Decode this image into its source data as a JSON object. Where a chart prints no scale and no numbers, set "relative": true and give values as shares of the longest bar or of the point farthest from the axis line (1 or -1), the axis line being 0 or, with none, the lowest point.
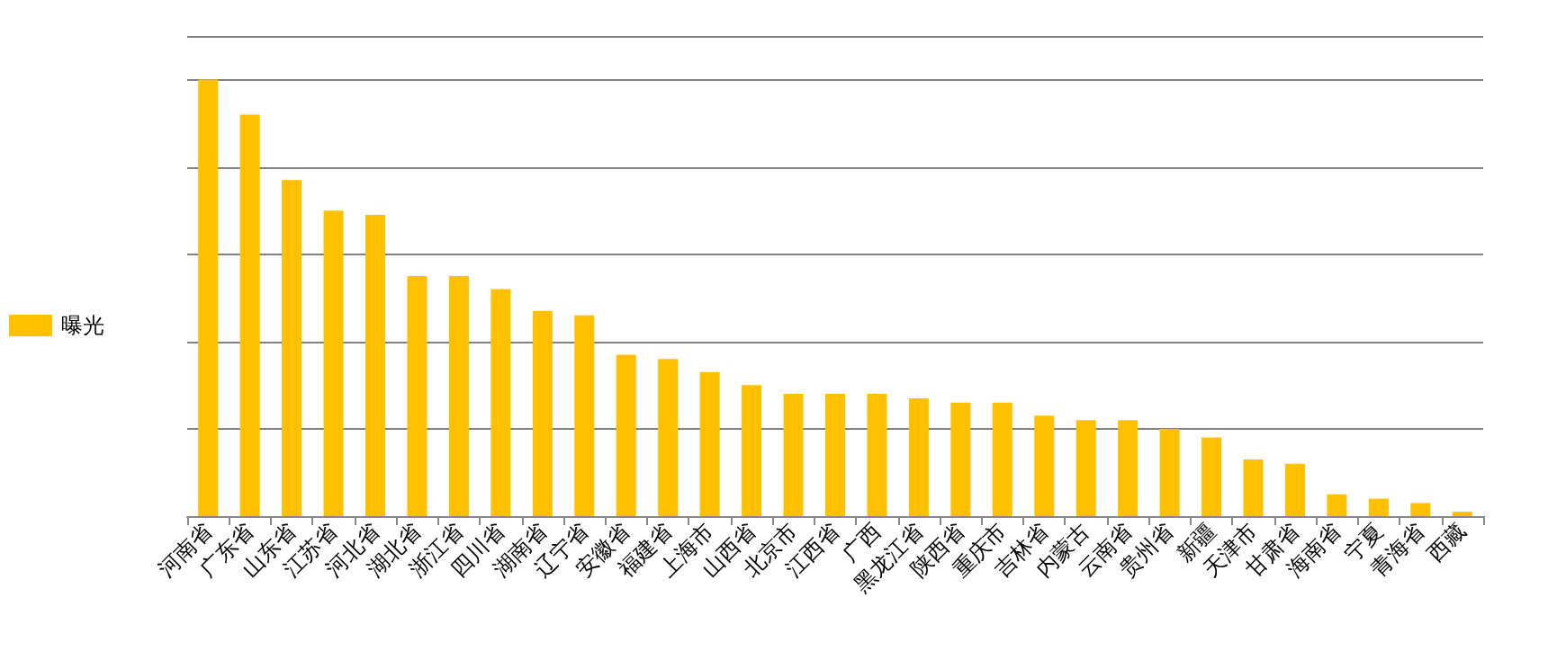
{
  "chart_data": {
    "type": "bar",
    "relative": true,
    "categories": [
      "河南省",
      "广东省",
      "山东省",
      "江苏省",
      "河北省",
      "湖北省",
      "浙江省",
      "四川省",
      "湖南省",
      "辽宁省",
      "安徽省",
      "福建省",
      "上海市",
      "山西省",
      "北京市",
      "江西省",
      "广西",
      "黑龙江省",
      "陕西省",
      "重庆市",
      "吉林省",
      "内蒙古",
      "云南省",
      "贵州省",
      "新疆",
      "天津市",
      "甘肃省",
      "海南省",
      "宁夏",
      "青海省",
      "西藏"
    ],
    "series": [
      {
        "name": "曝光",
        "color": "#ffc000",
        "values": [
          1,
          0.92,
          0.77,
          0.7,
          0.69,
          0.55,
          0.55,
          0.52,
          0.47,
          0.46,
          0.37,
          0.36,
          0.33,
          0.3,
          0.28,
          0.28,
          0.28,
          0.27,
          0.26,
          0.26,
          0.23,
          0.22,
          0.22,
          0.2,
          0.18,
          0.13,
          0.12,
          0.05,
          0.04,
          0.03,
          0.01
        ]
      }
    ],
    "grid": "y",
    "legend": "left"
  }
}
